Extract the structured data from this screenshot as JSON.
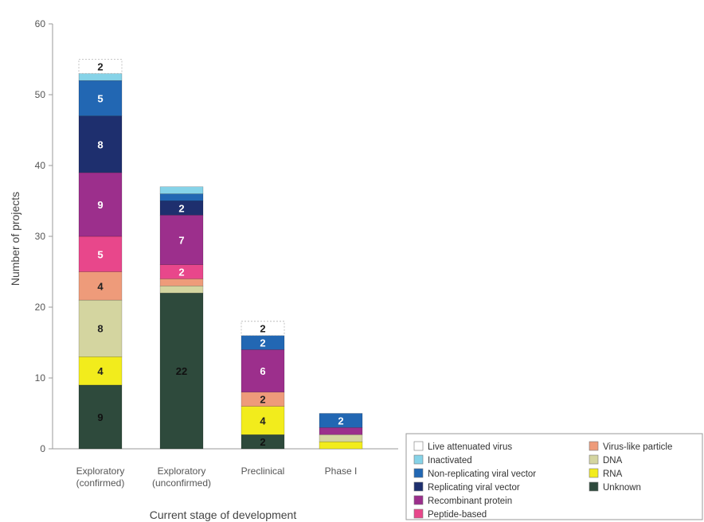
{
  "chart_data": {
    "type": "bar",
    "stacked": true,
    "title": "",
    "xlabel": "Current stage of development",
    "ylabel": "Number of projects",
    "ylim": [
      0,
      60
    ],
    "yticks": [
      0,
      10,
      20,
      30,
      40,
      50,
      60
    ],
    "categories": [
      "Exploratory\n(confirmed)",
      "Exploratory\n(unconfirmed)",
      "Preclinical",
      "Phase I"
    ],
    "grid": false,
    "legend_position": "bottom-right",
    "series": [
      {
        "name": "Unknown",
        "color": "#2e4a3c",
        "values": [
          9,
          22,
          2,
          0
        ],
        "labels": [
          "9",
          "22",
          "2",
          ""
        ]
      },
      {
        "name": "RNA",
        "color": "#f2ec1c",
        "values": [
          4,
          0,
          4,
          1
        ],
        "labels": [
          "4",
          "",
          "4",
          ""
        ]
      },
      {
        "name": "DNA",
        "color": "#d4d5a0",
        "values": [
          8,
          1,
          0,
          1
        ],
        "labels": [
          "8",
          "",
          "",
          ""
        ]
      },
      {
        "name": "Virus-like particle",
        "color": "#ee9b7a",
        "values": [
          4,
          1,
          2,
          0
        ],
        "labels": [
          "4",
          "",
          "2",
          ""
        ]
      },
      {
        "name": "Peptide-based",
        "color": "#e8478b",
        "values": [
          5,
          2,
          0,
          0
        ],
        "labels": [
          "5",
          "2",
          "",
          ""
        ]
      },
      {
        "name": "Recombinant protein",
        "color": "#9c2f8c",
        "values": [
          9,
          7,
          6,
          1
        ],
        "labels": [
          "9",
          "7",
          "6",
          ""
        ]
      },
      {
        "name": "Replicating viral vector",
        "color": "#1e2f6e",
        "values": [
          8,
          2,
          0,
          0
        ],
        "labels": [
          "8",
          "2",
          "",
          ""
        ]
      },
      {
        "name": "Non-replicating viral vector",
        "color": "#2267b3",
        "values": [
          5,
          1,
          2,
          2
        ],
        "labels": [
          "5",
          "",
          "2",
          "2"
        ]
      },
      {
        "name": "Inactivated",
        "color": "#86d3e8",
        "values": [
          1,
          1,
          0,
          0
        ],
        "labels": [
          "",
          "",
          "",
          ""
        ]
      },
      {
        "name": "Live attenuated virus",
        "color": "#ffffff",
        "values": [
          2,
          0,
          2,
          0
        ],
        "labels": [
          "2",
          "",
          "2",
          ""
        ]
      }
    ],
    "legend_entries": [
      [
        "Live attenuated virus",
        "Virus-like particle"
      ],
      [
        "Inactivated",
        "DNA"
      ],
      [
        "Non-replicating viral vector",
        "RNA"
      ],
      [
        "Replicating viral vector",
        "Unknown"
      ],
      [
        "Recombinant protein",
        null
      ],
      [
        "Peptide-based",
        null
      ]
    ]
  }
}
